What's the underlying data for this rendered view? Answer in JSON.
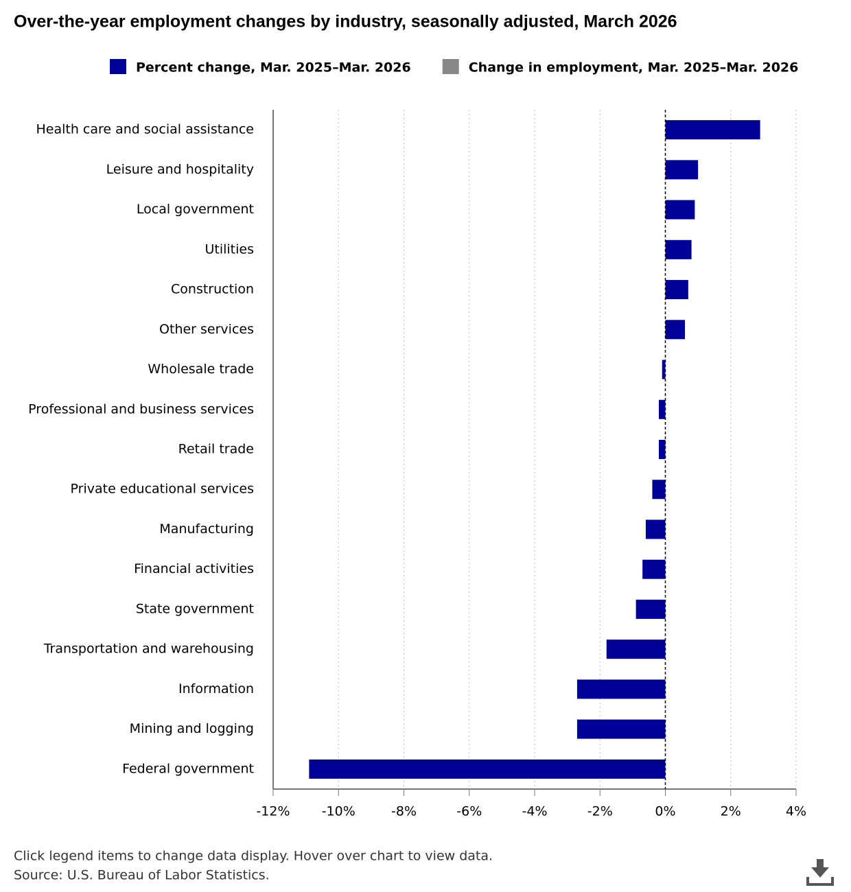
{
  "chart_data": {
    "type": "hbar",
    "title": "Over-the-year employment changes by industry, seasonally adjusted, March 2026",
    "categories": [
      "Health care and social assistance",
      "Leisure and hospitality",
      "Local government",
      "Utilities",
      "Construction",
      "Other services",
      "Wholesale trade",
      "Professional and business services",
      "Retail trade",
      "Private educational services",
      "Manufacturing",
      "Financial activities",
      "State government",
      "Transportation and warehousing",
      "Information",
      "Mining and logging",
      "Federal government"
    ],
    "series": [
      {
        "name": "Percent change, Mar. 2025–Mar. 2026",
        "color": "#000099",
        "values": [
          2.9,
          1.0,
          0.9,
          0.8,
          0.7,
          0.6,
          -0.1,
          -0.2,
          -0.2,
          -0.4,
          -0.6,
          -0.7,
          -0.9,
          -1.8,
          -2.7,
          -2.7,
          -10.9
        ]
      },
      {
        "name": "Change in employment, Mar. 2025–Mar. 2026",
        "color": "#888888",
        "hidden": true
      }
    ],
    "xlim": [
      -12,
      4
    ],
    "xticks": [
      {
        "value": -12,
        "label": "-12%"
      },
      {
        "value": -10,
        "label": "-10%"
      },
      {
        "value": -8,
        "label": "-8%"
      },
      {
        "value": -6,
        "label": "-6%"
      },
      {
        "value": -4,
        "label": "-4%"
      },
      {
        "value": -2,
        "label": "-2%"
      },
      {
        "value": 0,
        "label": "0%"
      },
      {
        "value": 2,
        "label": "2%"
      },
      {
        "value": 4,
        "label": "4%"
      }
    ],
    "grid": true,
    "notes": [
      "Click legend items to change data display. Hover over chart to view data.",
      "Source: U.S. Bureau of Labor Statistics."
    ]
  }
}
